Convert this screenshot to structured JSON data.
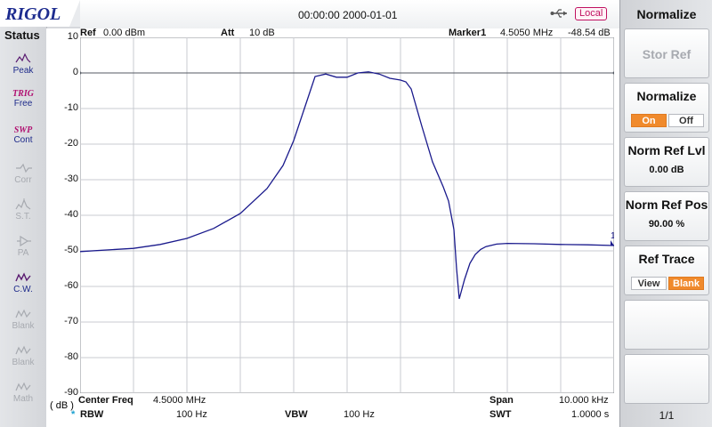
{
  "brand": "RIGOL",
  "header": {
    "datetime": "00:00:00 2000-01-01",
    "local_label": "Local",
    "usb_icon": "usb-icon"
  },
  "status": {
    "title": "Status",
    "items": [
      {
        "top": "",
        "label": "Peak",
        "icon": "peak-icon",
        "active": true
      },
      {
        "top": "TRIG",
        "label": "Free",
        "icon": "",
        "active": true
      },
      {
        "top": "SWP",
        "label": "Cont",
        "icon": "",
        "active": true
      },
      {
        "top": "",
        "label": "Corr",
        "icon": "corr-icon",
        "active": false
      },
      {
        "top": "",
        "label": "S.T.",
        "icon": "signal-track-icon",
        "active": false
      },
      {
        "top": "",
        "label": "PA",
        "icon": "preamp-icon",
        "active": false
      },
      {
        "top": "",
        "label": "C.W.",
        "icon": "clear-write-icon",
        "active": true
      },
      {
        "top": "",
        "label": "Blank",
        "icon": "trace-blank-icon",
        "active": false
      },
      {
        "top": "",
        "label": "Blank",
        "icon": "trace-blank-icon",
        "active": false
      },
      {
        "top": "",
        "label": "Math",
        "icon": "trace-math-icon",
        "active": false
      }
    ]
  },
  "readouts": {
    "ref_label": "Ref",
    "ref_value": "0.00 dBm",
    "att_label": "Att",
    "att_value": "10 dB",
    "marker_label": "Marker1",
    "marker_freq": "4.5050 MHz",
    "marker_level": "-48.54 dB",
    "center_label": "Center Freq",
    "center_value": "4.5000 MHz",
    "span_label": "Span",
    "span_value": "10.000 kHz",
    "rbw_label": "RBW",
    "rbw_value": "100 Hz",
    "vbw_label": "VBW",
    "vbw_value": "100 Hz",
    "swt_label": "SWT",
    "swt_value": "1.0000 s",
    "unit_label": "( dB )",
    "rbw_star": "*"
  },
  "chart_data": {
    "type": "line",
    "ytick_labels": [
      "10",
      "0",
      "-10",
      "-20",
      "-30",
      "-40",
      "-50",
      "-60",
      "-70",
      "-80",
      "-90"
    ],
    "ylim": [
      -90,
      10
    ],
    "x_center_mhz": 4.5,
    "x_span_khz": 10.0,
    "grid": true,
    "ref_line": 0,
    "marker": {
      "label": "1",
      "freq_mhz": 4.505,
      "level_db": -48.54
    },
    "series": [
      {
        "color": "#1a1a8c",
        "x_mhz": [
          4.495,
          4.496,
          4.4965,
          4.497,
          4.4975,
          4.498,
          4.4985,
          4.4988,
          4.499,
          4.4992,
          4.4994,
          4.4996,
          4.4998,
          4.5,
          4.5002,
          4.5004,
          4.5006,
          4.5008,
          4.501,
          4.5011,
          4.5012,
          4.5014,
          4.5016,
          4.5018,
          4.5019,
          4.502,
          4.50205,
          4.5021,
          4.5022,
          4.5023,
          4.5024,
          4.5025,
          4.5026,
          4.5028,
          4.503,
          4.5035,
          4.504,
          4.5045,
          4.505
        ],
        "db": [
          -50.2,
          -49.3,
          -48.2,
          -46.5,
          -43.7,
          -39.5,
          -32.5,
          -26,
          -19,
          -10,
          -1,
          -0.3,
          -1.2,
          -1.2,
          0,
          0.3,
          -0.3,
          -1.5,
          -2,
          -2.5,
          -4.5,
          -15,
          -25,
          -32,
          -36,
          -44,
          -55,
          -63.5,
          -58,
          -53.5,
          -51,
          -49.6,
          -48.8,
          -48.1,
          -47.9,
          -48,
          -48.2,
          -48.3,
          -48.5
        ]
      }
    ]
  },
  "menu": {
    "title": "Normalize",
    "stor_ref": "Stor Ref",
    "normalize_label": "Normalize",
    "normalize_on": "On",
    "normalize_off": "Off",
    "norm_ref_lvl_label": "Norm Ref Lvl",
    "norm_ref_lvl_value": "0.00 dB",
    "norm_ref_pos_label": "Norm Ref Pos",
    "norm_ref_pos_value": "90.00 %",
    "ref_trace_label": "Ref Trace",
    "ref_trace_view": "View",
    "ref_trace_blank": "Blank",
    "page": "1/1"
  },
  "colors": {
    "trace": "#1a1a8c",
    "accent": "#f08a2c",
    "brand": "#1d2c8f",
    "local": "#c01060"
  }
}
